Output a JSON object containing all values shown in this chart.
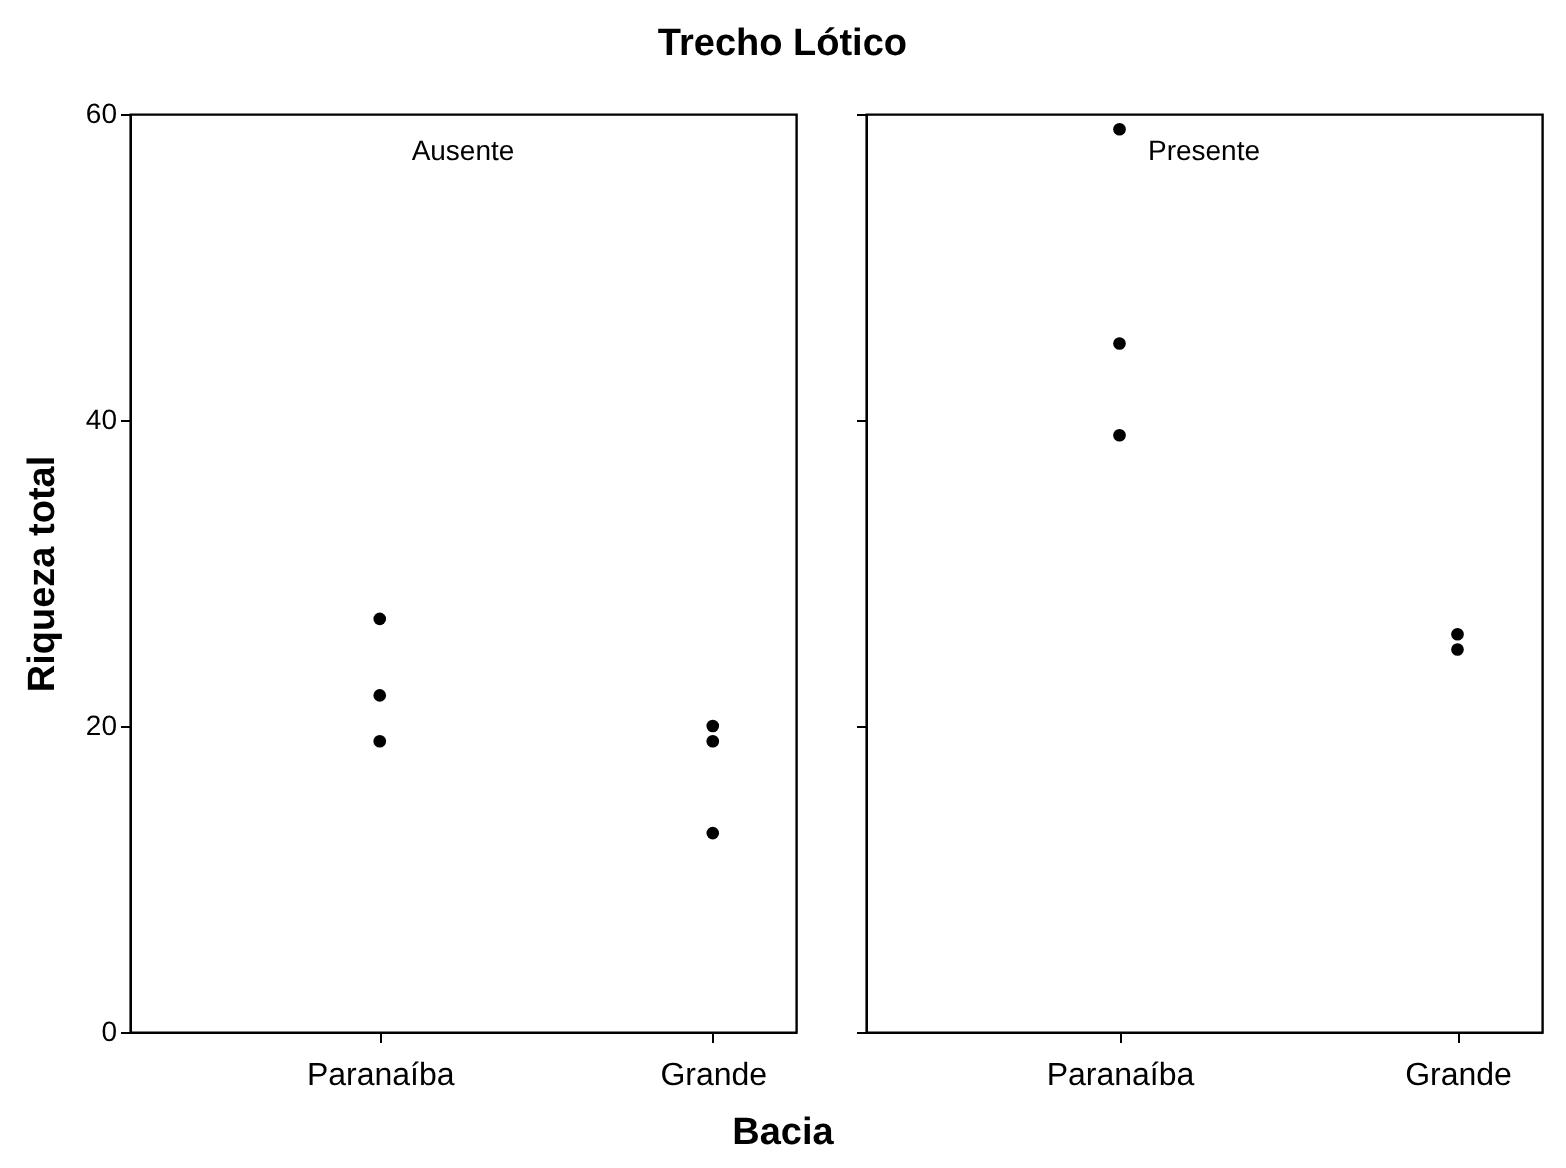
{
  "chart_data": [
    {
      "type": "scatter",
      "title": "Trecho Lótico",
      "xlabel": "Bacia",
      "ylabel": "Riqueza total",
      "annotations": [
        "Ausente"
      ],
      "categories": [
        "Paranaíba",
        "Grande"
      ],
      "ylim": [
        0,
        60
      ],
      "yticks": [
        0,
        20,
        40,
        60
      ],
      "marker": "circle",
      "series": [
        {
          "type": "scatter",
          "x": [
            "Paranaíba",
            "Paranaíba",
            "Paranaíba",
            "Grande",
            "Grande",
            "Grande"
          ],
          "values": [
            27,
            22,
            19,
            20,
            19,
            13
          ],
          "color": "#000000"
        }
      ]
    },
    {
      "type": "scatter",
      "annotations": [
        "Presente"
      ],
      "categories": [
        "Paranaíba",
        "Grande"
      ],
      "ylim": [
        0,
        60
      ],
      "yticks": [
        0,
        20,
        40,
        60
      ],
      "marker": "circle",
      "tick_labels": "x",
      "series": [
        {
          "type": "scatter",
          "x": [
            "Paranaíba",
            "Paranaíba",
            "Paranaíba",
            "Grande",
            "Grande"
          ],
          "values": [
            59,
            45,
            39,
            26,
            25
          ],
          "color": "#000000"
        }
      ]
    }
  ]
}
